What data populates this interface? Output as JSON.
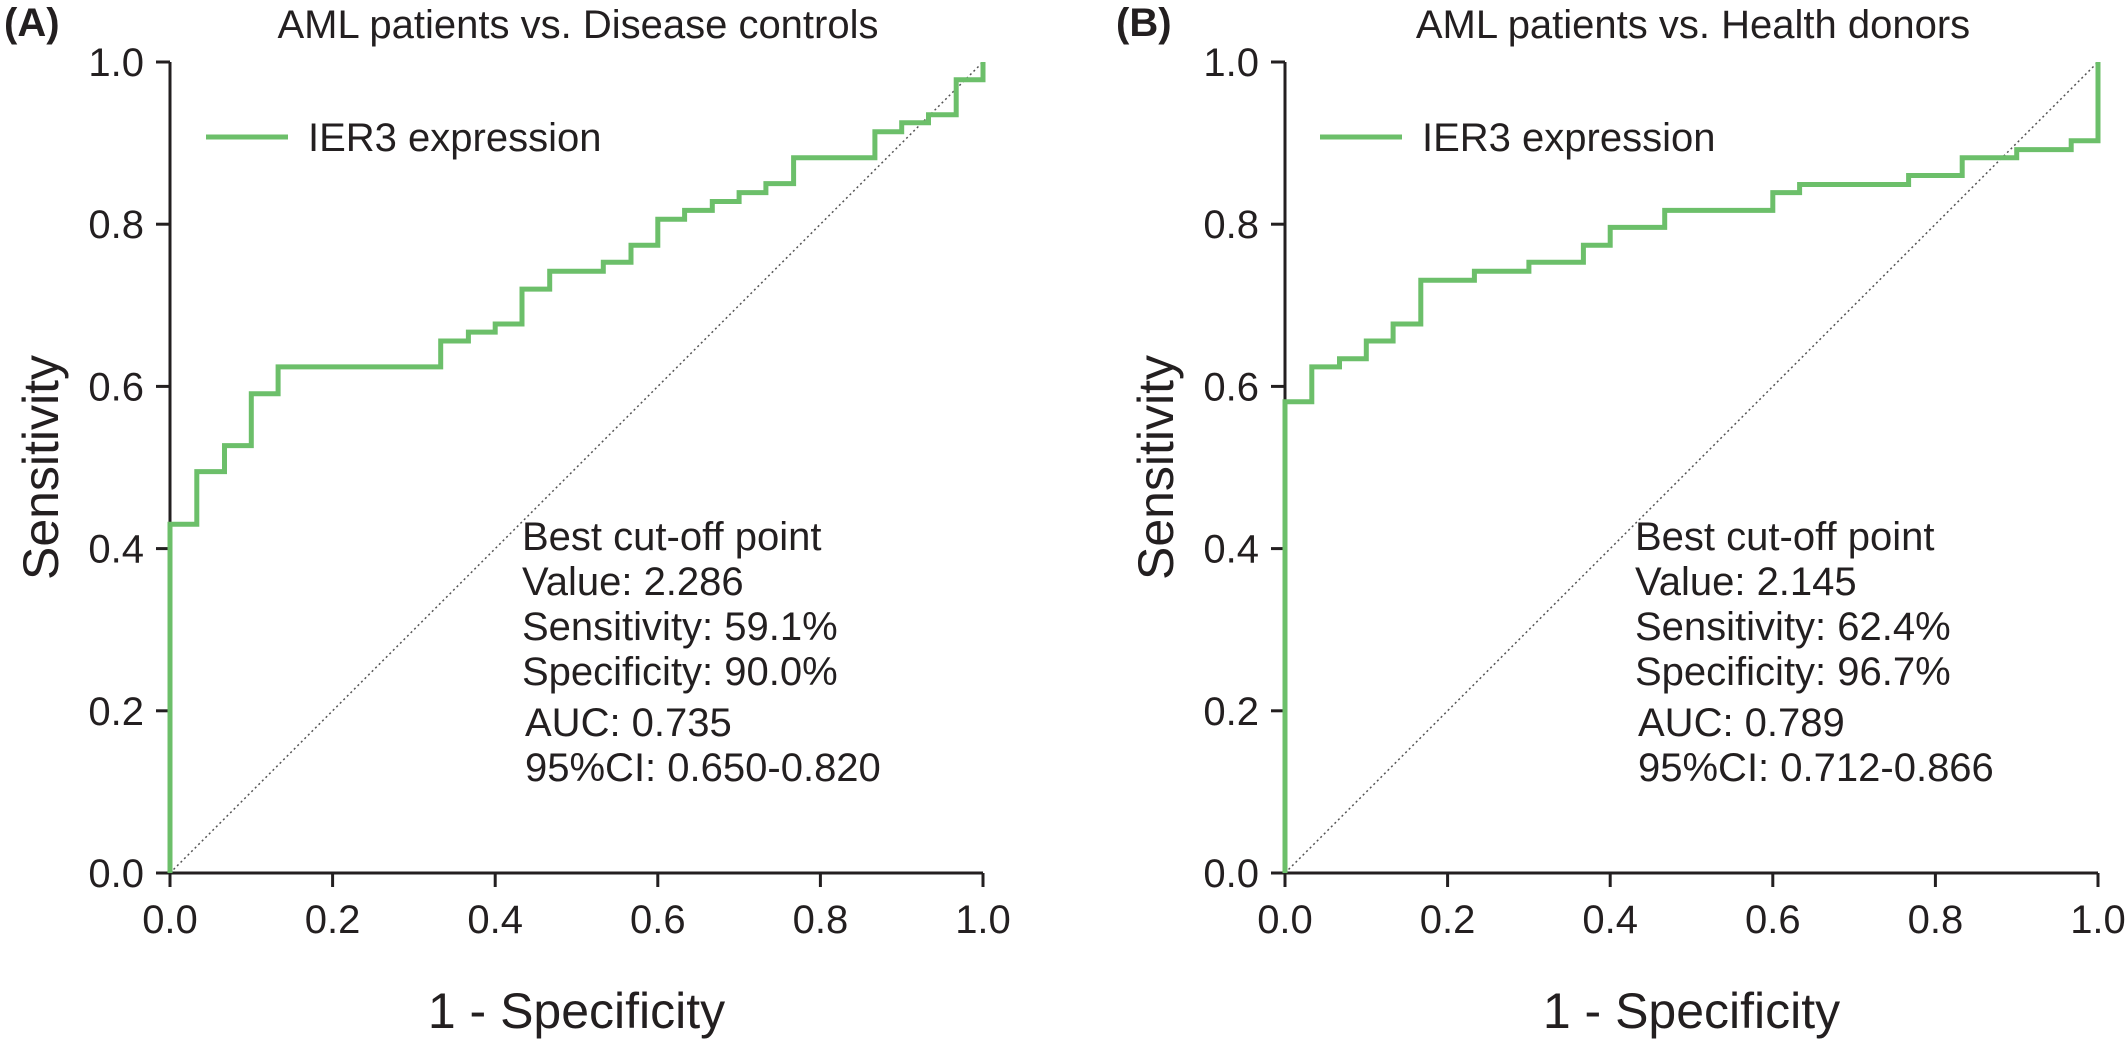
{
  "colors": {
    "curve": "#6cbf6a",
    "axis": "#231f20",
    "reference": "#555555"
  },
  "chart_data": [
    {
      "type": "line",
      "panel_label": "(A)",
      "title": "AML patients vs. Disease controls",
      "xlabel": "1 - Specificity",
      "ylabel": "Sensitivity",
      "xlim": [
        0,
        1
      ],
      "ylim": [
        0,
        1
      ],
      "x_ticks": [
        "0.0",
        "0.2",
        "0.4",
        "0.6",
        "0.8",
        "1.0"
      ],
      "y_ticks": [
        "0.0",
        "0.2",
        "0.4",
        "0.6",
        "0.8",
        "1.0"
      ],
      "grid": false,
      "legend_position": "top-left",
      "reference_line": "diagonal",
      "series": [
        {
          "name": "IER3 expression",
          "step": true,
          "points": [
            [
              0.0,
              0.0
            ],
            [
              0.0,
              0.43
            ],
            [
              0.033,
              0.43
            ],
            [
              0.033,
              0.495
            ],
            [
              0.067,
              0.495
            ],
            [
              0.067,
              0.527
            ],
            [
              0.1,
              0.527
            ],
            [
              0.1,
              0.591
            ],
            [
              0.133,
              0.591
            ],
            [
              0.133,
              0.624
            ],
            [
              0.333,
              0.624
            ],
            [
              0.333,
              0.656
            ],
            [
              0.367,
              0.656
            ],
            [
              0.367,
              0.667
            ],
            [
              0.4,
              0.667
            ],
            [
              0.4,
              0.677
            ],
            [
              0.433,
              0.677
            ],
            [
              0.433,
              0.72
            ],
            [
              0.467,
              0.72
            ],
            [
              0.467,
              0.742
            ],
            [
              0.533,
              0.742
            ],
            [
              0.533,
              0.753
            ],
            [
              0.567,
              0.753
            ],
            [
              0.567,
              0.774
            ],
            [
              0.6,
              0.774
            ],
            [
              0.6,
              0.806
            ],
            [
              0.633,
              0.806
            ],
            [
              0.633,
              0.817
            ],
            [
              0.667,
              0.817
            ],
            [
              0.667,
              0.828
            ],
            [
              0.7,
              0.828
            ],
            [
              0.7,
              0.839
            ],
            [
              0.733,
              0.839
            ],
            [
              0.733,
              0.85
            ],
            [
              0.767,
              0.85
            ],
            [
              0.767,
              0.882
            ],
            [
              0.867,
              0.882
            ],
            [
              0.867,
              0.914
            ],
            [
              0.9,
              0.914
            ],
            [
              0.9,
              0.925
            ],
            [
              0.933,
              0.925
            ],
            [
              0.933,
              0.935
            ],
            [
              0.967,
              0.935
            ],
            [
              0.967,
              0.978
            ],
            [
              1.0,
              0.978
            ],
            [
              1.0,
              1.0
            ]
          ]
        }
      ],
      "annotations": [
        "Best cut-off point",
        "Value: 2.286",
        "Sensitivity: 59.1%",
        "Specificity: 90.0%",
        "AUC: 0.735",
        "95%CI: 0.650-0.820"
      ]
    },
    {
      "type": "line",
      "panel_label": "(B)",
      "title": "AML patients vs. Health donors",
      "xlabel": "1 - Specificity",
      "ylabel": "Sensitivity",
      "xlim": [
        0,
        1
      ],
      "ylim": [
        0,
        1
      ],
      "x_ticks": [
        "0.0",
        "0.2",
        "0.4",
        "0.6",
        "0.8",
        "1.0"
      ],
      "y_ticks": [
        "0.0",
        "0.2",
        "0.4",
        "0.6",
        "0.8",
        "1.0"
      ],
      "grid": false,
      "legend_position": "top-left",
      "reference_line": "diagonal",
      "series": [
        {
          "name": "IER3 expression",
          "step": true,
          "points": [
            [
              0.0,
              0.0
            ],
            [
              0.0,
              0.581
            ],
            [
              0.033,
              0.581
            ],
            [
              0.033,
              0.624
            ],
            [
              0.067,
              0.624
            ],
            [
              0.067,
              0.634
            ],
            [
              0.1,
              0.634
            ],
            [
              0.1,
              0.656
            ],
            [
              0.133,
              0.656
            ],
            [
              0.133,
              0.677
            ],
            [
              0.167,
              0.677
            ],
            [
              0.167,
              0.731
            ],
            [
              0.233,
              0.731
            ],
            [
              0.233,
              0.742
            ],
            [
              0.3,
              0.742
            ],
            [
              0.3,
              0.753
            ],
            [
              0.367,
              0.753
            ],
            [
              0.367,
              0.774
            ],
            [
              0.4,
              0.774
            ],
            [
              0.4,
              0.796
            ],
            [
              0.467,
              0.796
            ],
            [
              0.467,
              0.817
            ],
            [
              0.6,
              0.817
            ],
            [
              0.6,
              0.839
            ],
            [
              0.633,
              0.839
            ],
            [
              0.633,
              0.849
            ],
            [
              0.767,
              0.849
            ],
            [
              0.767,
              0.86
            ],
            [
              0.833,
              0.86
            ],
            [
              0.833,
              0.882
            ],
            [
              0.9,
              0.882
            ],
            [
              0.9,
              0.892
            ],
            [
              0.967,
              0.892
            ],
            [
              0.967,
              0.903
            ],
            [
              1.0,
              0.903
            ],
            [
              1.0,
              1.0
            ]
          ]
        }
      ],
      "annotations": [
        "Best cut-off point",
        "Value: 2.145",
        "Sensitivity: 62.4%",
        "Specificity: 96.7%",
        "AUC: 0.789",
        "95%CI: 0.712-0.866"
      ]
    }
  ]
}
